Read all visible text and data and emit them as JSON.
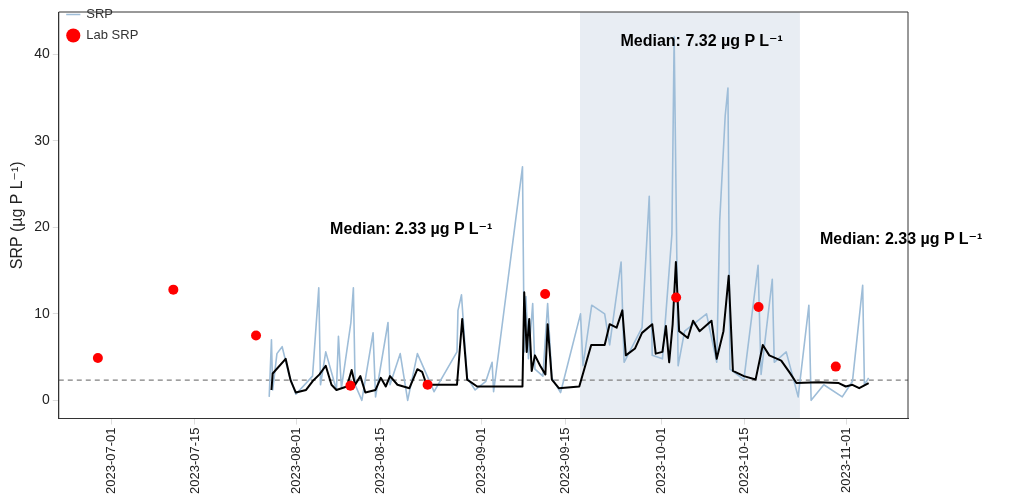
{
  "chart_data": {
    "type": "line",
    "ylabel": "SRP (µg P L⁻¹)",
    "legend": "top left",
    "grid": false,
    "xlim": [
      "2023-06-22T05:00",
      "2023-11-11T07:00"
    ],
    "xticks": [
      "2023-07-01",
      "2023-07-15",
      "2023-08-01",
      "2023-08-15",
      "2023-09-01",
      "2023-09-15",
      "2023-10-01",
      "2023-10-15",
      "2023-11-01"
    ],
    "ylim": [
      -2.1,
      44.9
    ],
    "yticks": [
      0,
      10,
      20,
      30,
      40
    ],
    "bands": [
      {
        "axis": "x",
        "from": "2023-09-17T10:00",
        "to": "2023-10-24T05:00",
        "color": "#e8edf3"
      }
    ],
    "ref_lines": [
      {
        "axis": "y",
        "value": 2.33,
        "color": "#808080",
        "line_style": "dashed"
      }
    ],
    "annotations": [
      "Median: 2.33 µg P L⁻¹",
      "Median: 7.32 µg P L⁻¹",
      "Median: 2.33 µg P L⁻¹"
    ],
    "series": [
      {
        "name": "SRP",
        "color": "#9ebdd8",
        "x": [
          "2023-07-27T10:00",
          "2023-07-27T19:00",
          "2023-07-28T00:00",
          "2023-07-28T17:00",
          "2023-07-29T14:00",
          "2023-07-30T17:00",
          "2023-07-31T21:00",
          "2023-08-03T16:00",
          "2023-08-04T17:00",
          "2023-08-05T00:00",
          "2023-08-05T21:00",
          "2023-08-07T16:00",
          "2023-08-08T00:00",
          "2023-08-08T12:00",
          "2023-08-10T02:00",
          "2023-08-10T12:00",
          "2023-08-10T19:00",
          "2023-08-11T22:00",
          "2023-08-13T19:00",
          "2023-08-14T05:00",
          "2023-08-16T07:00",
          "2023-08-16T15:00",
          "2023-08-18T08:00",
          "2023-08-19T14:00",
          "2023-08-21T05:00",
          "2023-08-24T00:00",
          "2023-08-27T20:00",
          "2023-08-28T00:00",
          "2023-08-28T14:00",
          "2023-08-29T13:00",
          "2023-08-30T21:00",
          "2023-09-01T16:00",
          "2023-09-02T17:00",
          "2023-09-02T23:00",
          "2023-09-07T19:00",
          "2023-09-08T02:00",
          "2023-09-08T09:00",
          "2023-09-08T19:00",
          "2023-09-09T12:00",
          "2023-09-09T21:00",
          "2023-09-11T05:00",
          "2023-09-12T00:00",
          "2023-09-12T17:00",
          "2023-09-14T04:00",
          "2023-09-17T12:00",
          "2023-09-17T22:00",
          "2023-09-19T09:00",
          "2023-09-21T13:00",
          "2023-09-22T09:00",
          "2023-09-24T07:00",
          "2023-09-24T19:00",
          "2023-09-27T19:00",
          "2023-09-29T00:00",
          "2023-09-29T12:00",
          "2023-10-01T05:00",
          "2023-10-02T19:00",
          "2023-10-03T04:00",
          "2023-10-03T20:00",
          "2023-10-04T22:00",
          "2023-10-08T14:00",
          "2023-10-10T07:00",
          "2023-10-10T19:00",
          "2023-10-11T17:00",
          "2023-10-12T04:00",
          "2023-10-12T12:00",
          "2023-10-14T20:00",
          "2023-10-17T05:00",
          "2023-10-17T17:00",
          "2023-10-19T14:00",
          "2023-10-19T22:00",
          "2023-10-21T22:00",
          "2023-10-23T22:00",
          "2023-10-25T17:00",
          "2023-10-26T02:00",
          "2023-10-28T05:00",
          "2023-10-31T07:00",
          "2023-11-02T00:00",
          "2023-11-03T17:00",
          "2023-11-04T00:00",
          "2023-11-04T17:00"
        ],
        "values": [
          0.4,
          7.0,
          1.2,
          5.4,
          6.2,
          3.0,
          0.7,
          2.8,
          13.0,
          1.8,
          5.6,
          1.2,
          7.4,
          1.4,
          9.0,
          13.0,
          1.8,
          0.0,
          7.8,
          0.4,
          9.0,
          1.8,
          5.4,
          0.0,
          5.4,
          1.0,
          5.6,
          10.4,
          12.2,
          2.6,
          1.2,
          2.2,
          4.4,
          1.0,
          27.0,
          5.6,
          12.0,
          4.8,
          11.2,
          3.6,
          2.8,
          11.2,
          2.6,
          0.9,
          10.0,
          4.0,
          11.0,
          10.0,
          6.4,
          16.0,
          4.4,
          8.4,
          23.6,
          5.2,
          4.8,
          19.2,
          42.0,
          4.0,
          8.0,
          10.0,
          4.4,
          20.8,
          32.9,
          36.1,
          3.6,
          2.4,
          15.6,
          3.0,
          14.0,
          4.4,
          5.6,
          0.4,
          11.0,
          0.0,
          1.8,
          0.4,
          2.2,
          13.3,
          1.8,
          2.6
        ]
      },
      {
        "color": "#000000",
        "x": [
          "2023-07-27T19:00",
          "2023-07-28T00:00",
          "2023-07-30T04:00",
          "2023-07-31T00:00",
          "2023-07-31T21:00",
          "2023-08-02T14:00",
          "2023-08-03T16:00",
          "2023-08-04T20:00",
          "2023-08-05T21:00",
          "2023-08-06T20:00",
          "2023-08-07T16:00",
          "2023-08-09T10:00",
          "2023-08-10T05:00",
          "2023-08-10T19:00",
          "2023-08-11T16:00",
          "2023-08-12T12:00",
          "2023-08-14T05:00",
          "2023-08-15T02:00",
          "2023-08-15T22:00",
          "2023-08-16T15:00",
          "2023-08-17T21:00",
          "2023-08-19T21:00",
          "2023-08-21T05:00",
          "2023-08-22T00:00",
          "2023-08-22T18:00",
          "2023-08-27T20:00",
          "2023-08-28T17:00",
          "2023-08-29T13:00",
          "2023-08-31T05:00",
          "2023-09-07T19:00",
          "2023-09-08T02:00",
          "2023-09-08T12:00",
          "2023-09-08T22:00",
          "2023-09-09T08:00",
          "2023-09-09T21:00",
          "2023-09-10T18:00",
          "2023-09-11T15:00",
          "2023-09-12T00:00",
          "2023-09-12T17:00",
          "2023-09-13T21:00",
          "2023-09-17T07:00",
          "2023-09-18T03:00",
          "2023-09-19T07:00",
          "2023-09-21T13:00",
          "2023-09-22T09:00",
          "2023-09-23T13:00",
          "2023-09-24T12:00",
          "2023-09-25T02:00",
          "2023-09-26T15:00",
          "2023-09-27T19:00",
          "2023-09-29T12:00",
          "2023-09-30T02:00",
          "2023-10-01T05:00",
          "2023-10-01T19:00",
          "2023-10-02T08:00",
          "2023-10-02T22:00",
          "2023-10-03T11:00",
          "2023-10-04T00:00",
          "2023-10-05T11:00",
          "2023-10-06T08:00",
          "2023-10-07T10:00",
          "2023-10-09T10:00",
          "2023-10-10T07:00",
          "2023-10-11T10:00",
          "2023-10-12T07:00",
          "2023-10-13T00:00",
          "2023-10-14T20:00",
          "2023-10-16T19:00",
          "2023-10-18T00:00",
          "2023-10-19T02:00",
          "2023-10-21T02:00",
          "2023-10-22T12:00",
          "2023-10-23T15:00",
          "2023-10-27T07:00",
          "2023-10-30T17:00",
          "2023-10-31T21:00",
          "2023-11-02T00:00",
          "2023-11-03T03:00",
          "2023-11-04T17:00"
        ],
        "values": [
          1.2,
          3.1,
          4.8,
          2.3,
          0.9,
          1.2,
          2.2,
          3.0,
          4.0,
          1.8,
          1.2,
          1.6,
          3.5,
          1.8,
          2.8,
          0.9,
          1.2,
          2.6,
          1.6,
          2.8,
          1.8,
          1.4,
          3.6,
          3.3,
          1.8,
          1.8,
          9.4,
          2.4,
          1.6,
          1.6,
          12.5,
          5.6,
          9.4,
          3.4,
          5.2,
          4.0,
          3.0,
          8.8,
          2.4,
          1.4,
          1.6,
          3.6,
          6.4,
          6.4,
          8.8,
          8.4,
          10.4,
          5.2,
          6.0,
          7.8,
          8.8,
          5.4,
          5.6,
          8.6,
          4.4,
          8.8,
          16.0,
          8.0,
          7.2,
          9.2,
          8.0,
          9.2,
          4.8,
          8.0,
          14.4,
          3.4,
          2.8,
          2.4,
          6.4,
          5.2,
          4.6,
          3.2,
          2.0,
          2.1,
          2.0,
          1.6,
          1.8,
          1.4,
          2.0
        ]
      },
      {
        "name": "Lab SRP",
        "type": "scatter",
        "marker": "circle",
        "color": "#ff0000",
        "x": [
          "2023-06-28T18:00",
          "2023-07-11T09:00",
          "2023-07-25T05:00",
          "2023-08-10T00:00",
          "2023-08-22T22:00",
          "2023-09-11T14:00",
          "2023-10-03T12:00",
          "2023-10-17T07:00",
          "2023-10-30T05:00"
        ],
        "values": [
          4.9,
          12.8,
          7.5,
          1.7,
          1.8,
          12.3,
          11.9,
          10.8,
          3.9
        ]
      }
    ]
  }
}
